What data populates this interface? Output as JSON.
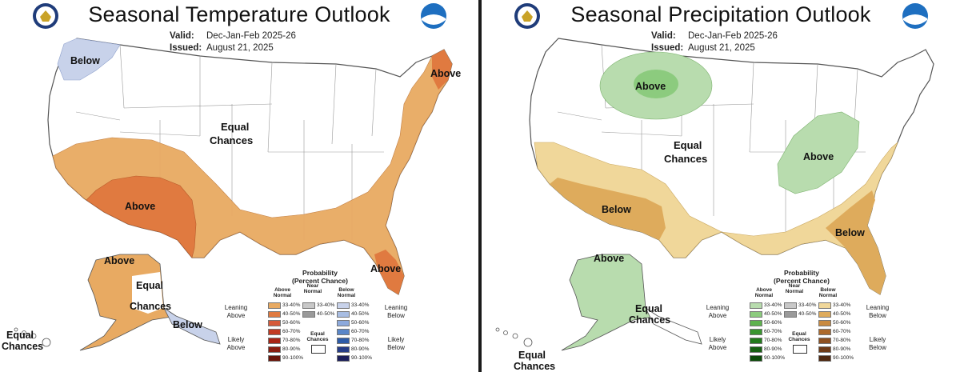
{
  "temperature": {
    "title": "Seasonal Temperature Outlook",
    "valid_label": "Valid:",
    "valid_value": "Dec-Jan-Feb 2025-26",
    "issued_label": "Issued:",
    "issued_value": "August 21, 2025",
    "regions": {
      "below_nw": "Below",
      "above_ne": "Above",
      "equal_center_1": "Equal",
      "equal_center_2": "Chances",
      "above_sw": "Above",
      "above_fl": "Above",
      "above_ak": "Above",
      "equal_ak_1": "Equal",
      "equal_ak_2": "Chances",
      "below_ak": "Below",
      "equal_hi_1": "Equal",
      "equal_hi_2": "Chances"
    },
    "colors": {
      "leaning": "#e8aa62",
      "likely": "#e07a40",
      "below": "#c8d2ea"
    }
  },
  "precipitation": {
    "title": "Seasonal Precipitation Outlook",
    "valid_label": "Valid:",
    "valid_value": "Dec-Jan-Feb 2025-26",
    "issued_label": "Issued:",
    "issued_value": "August 21, 2025",
    "regions": {
      "above_north": "Above",
      "equal_center_1": "Equal",
      "equal_center_2": "Chances",
      "above_ohio": "Above",
      "below_sw": "Below",
      "below_se": "Below",
      "above_ak": "Above",
      "equal_ak_1": "Equal",
      "equal_ak_2": "Chances",
      "equal_hi_1": "Equal",
      "equal_hi_2": "Chances"
    },
    "colors": {
      "above": "#b8dcae",
      "above_likely": "#8ccb7e",
      "below": "#f0d79a",
      "below_likely": "#deab5c"
    }
  },
  "legend": {
    "title_1": "Probability",
    "title_2": "(Percent Chance)",
    "col_above_1": "Above",
    "col_above_2": "Normal",
    "col_near_1": "Near",
    "col_near_2": "Normal",
    "col_below_1": "Below",
    "col_below_2": "Normal",
    "ranges": [
      "33-40%",
      "40-50%",
      "50-60%",
      "60-70%",
      "70-80%",
      "80-90%",
      "90-100%"
    ],
    "near_ranges": [
      "33-40%",
      "40-50%"
    ],
    "equal_1": "Equal",
    "equal_2": "Chances",
    "leaning_above_1": "Leaning",
    "leaning_above_2": "Above",
    "likely_above_1": "Likely",
    "likely_above_2": "Above",
    "leaning_below_1": "Leaning",
    "leaning_below_2": "Below",
    "likely_below_1": "Likely",
    "likely_below_2": "Below",
    "temp_above_colors": [
      "#e8aa62",
      "#e07a40",
      "#d65a3a",
      "#c23a22",
      "#a82515",
      "#8a1e10",
      "#6a160a"
    ],
    "temp_below_colors": [
      "#c8d2ea",
      "#a8bde2",
      "#8ca9dc",
      "#5a86c8",
      "#2e5ca8",
      "#263d86",
      "#1c1f5a"
    ],
    "precip_above_colors": [
      "#b8dcae",
      "#8ccb7e",
      "#5eb24e",
      "#3a9530",
      "#237a1c",
      "#176012",
      "#0d4a0a"
    ],
    "precip_below_colors": [
      "#f0d79a",
      "#deab5c",
      "#c98a40",
      "#ad6a2c",
      "#8e5020",
      "#6e3a16",
      "#4e2810"
    ],
    "near_colors": [
      "#c8c8c8",
      "#9a9a9a"
    ]
  }
}
